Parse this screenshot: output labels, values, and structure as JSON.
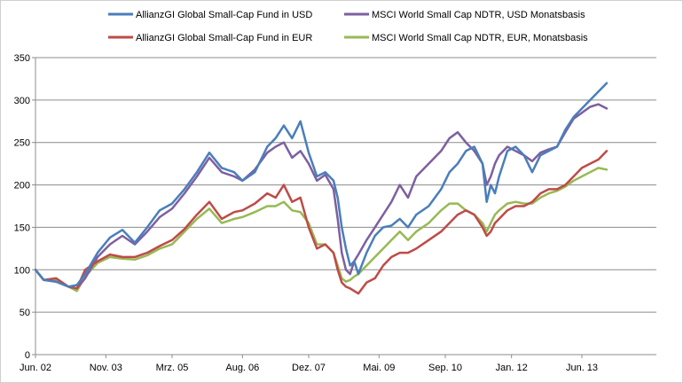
{
  "chart_data": {
    "type": "line",
    "title": "",
    "xlabel": "",
    "ylabel": "",
    "ylim": [
      0,
      350
    ],
    "y_ticks": [
      0,
      50,
      100,
      150,
      200,
      250,
      300,
      350
    ],
    "x_tick_labels": [
      "Jun. 02",
      "Nov. 03",
      "Mrz. 05",
      "Aug. 06",
      "Dez. 07",
      "Mai. 09",
      "Sep. 10",
      "Jan. 12",
      "Jun. 13"
    ],
    "x_tick_index": [
      0,
      17,
      33,
      50,
      66,
      83,
      99,
      115,
      132
    ],
    "x_range_months": [
      0,
      150
    ],
    "grid": "horizontal",
    "legend_position": "top",
    "series": [
      {
        "name": "AllianzGI Global Small-Cap  Fund in USD",
        "color": "#4a7ebb",
        "months": [
          0,
          2,
          5,
          8,
          10,
          12,
          15,
          18,
          21,
          24,
          27,
          30,
          33,
          36,
          39,
          42,
          45,
          48,
          50,
          53,
          56,
          58,
          60,
          62,
          64,
          66,
          68,
          70,
          72,
          73,
          74,
          75,
          76,
          77,
          78,
          80,
          82,
          84,
          86,
          88,
          90,
          92,
          95,
          98,
          100,
          102,
          104,
          106,
          108,
          109,
          110,
          111,
          112,
          114,
          116,
          118,
          120,
          122,
          124,
          126,
          128,
          130,
          132,
          134,
          136,
          138
        ],
        "values": [
          100,
          88,
          86,
          80,
          82,
          95,
          120,
          138,
          147,
          132,
          150,
          170,
          178,
          195,
          215,
          238,
          220,
          215,
          205,
          215,
          245,
          255,
          270,
          255,
          275,
          238,
          210,
          215,
          205,
          185,
          150,
          125,
          105,
          110,
          95,
          120,
          140,
          150,
          152,
          160,
          150,
          165,
          175,
          195,
          215,
          225,
          240,
          245,
          225,
          180,
          200,
          190,
          210,
          240,
          245,
          235,
          215,
          235,
          240,
          245,
          265,
          280,
          290,
          300,
          310,
          320
        ]
      },
      {
        "name": "AllianzGI Global Small-Cap  Fund in EUR",
        "color": "#be4b48",
        "months": [
          0,
          2,
          5,
          8,
          10,
          12,
          15,
          18,
          21,
          24,
          27,
          30,
          33,
          36,
          39,
          42,
          45,
          48,
          50,
          53,
          56,
          58,
          60,
          62,
          64,
          66,
          68,
          70,
          72,
          73,
          74,
          75,
          76,
          77,
          78,
          80,
          82,
          84,
          86,
          88,
          90,
          92,
          95,
          98,
          100,
          102,
          104,
          106,
          108,
          109,
          110,
          111,
          112,
          114,
          116,
          118,
          120,
          122,
          124,
          126,
          128,
          130,
          132,
          134,
          136,
          138
        ],
        "values": [
          100,
          88,
          90,
          80,
          78,
          100,
          110,
          118,
          115,
          115,
          120,
          128,
          135,
          148,
          165,
          180,
          160,
          168,
          170,
          178,
          190,
          185,
          200,
          180,
          185,
          150,
          125,
          130,
          120,
          100,
          85,
          80,
          78,
          75,
          72,
          85,
          90,
          105,
          115,
          120,
          120,
          125,
          135,
          145,
          155,
          165,
          170,
          165,
          150,
          140,
          145,
          155,
          160,
          170,
          175,
          175,
          180,
          190,
          195,
          195,
          200,
          210,
          220,
          225,
          230,
          240
        ]
      },
      {
        "name": "MSCI World Small Cap NDTR,  USD Monatsbasis",
        "color": "#7d60a0",
        "months": [
          0,
          2,
          5,
          8,
          10,
          12,
          15,
          18,
          21,
          24,
          27,
          30,
          33,
          36,
          39,
          42,
          45,
          48,
          50,
          53,
          56,
          58,
          60,
          62,
          64,
          66,
          68,
          70,
          72,
          73,
          74,
          75,
          76,
          77,
          78,
          80,
          82,
          84,
          86,
          88,
          90,
          92,
          95,
          98,
          100,
          102,
          104,
          106,
          108,
          109,
          110,
          111,
          112,
          114,
          116,
          118,
          120,
          122,
          124,
          126,
          128,
          130,
          132,
          134,
          136,
          138
        ],
        "values": [
          100,
          88,
          86,
          80,
          78,
          90,
          115,
          130,
          140,
          130,
          145,
          162,
          172,
          190,
          210,
          232,
          215,
          210,
          205,
          218,
          238,
          245,
          250,
          232,
          240,
          225,
          205,
          212,
          195,
          160,
          120,
          100,
          95,
          110,
          118,
          135,
          150,
          165,
          180,
          200,
          185,
          210,
          225,
          240,
          255,
          262,
          250,
          240,
          225,
          200,
          210,
          225,
          235,
          245,
          240,
          235,
          228,
          238,
          242,
          245,
          262,
          278,
          285,
          292,
          295,
          290
        ]
      },
      {
        "name": "MSCI World Small Cap NDTR, EUR, Monatsbasis",
        "color": "#98b954",
        "months": [
          0,
          2,
          5,
          8,
          10,
          12,
          15,
          18,
          21,
          24,
          27,
          30,
          33,
          36,
          39,
          42,
          45,
          48,
          50,
          53,
          56,
          58,
          60,
          62,
          64,
          66,
          68,
          70,
          72,
          73,
          74,
          75,
          76,
          77,
          78,
          80,
          82,
          84,
          86,
          88,
          90,
          92,
          95,
          98,
          100,
          102,
          104,
          106,
          108,
          109,
          110,
          111,
          112,
          114,
          116,
          118,
          120,
          122,
          124,
          126,
          128,
          130,
          132,
          134,
          136,
          138
        ],
        "values": [
          100,
          88,
          88,
          80,
          75,
          92,
          108,
          115,
          113,
          112,
          117,
          125,
          130,
          145,
          160,
          172,
          155,
          160,
          162,
          168,
          175,
          175,
          180,
          170,
          168,
          155,
          130,
          130,
          120,
          105,
          90,
          86,
          88,
          92,
          95,
          105,
          115,
          125,
          135,
          145,
          135,
          145,
          155,
          170,
          178,
          178,
          170,
          165,
          155,
          145,
          155,
          165,
          170,
          178,
          180,
          178,
          178,
          185,
          190,
          193,
          198,
          205,
          210,
          215,
          220,
          218
        ]
      }
    ]
  }
}
